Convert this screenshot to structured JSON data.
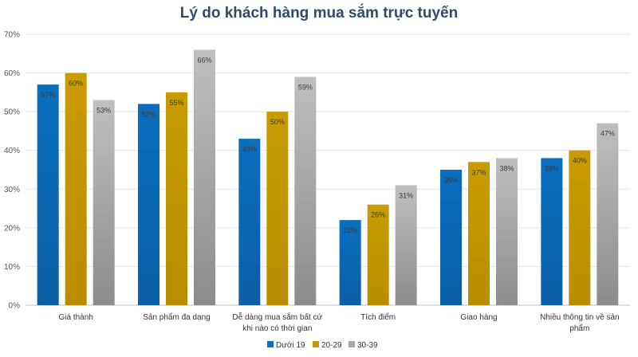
{
  "chart_data": {
    "type": "bar",
    "title": "Lý do khách hàng mua sắm trực tuyến",
    "categories": [
      [
        "Giá thành"
      ],
      [
        "Sản phẩm đa dạng"
      ],
      [
        "Dễ dàng mua sắm bất cứ",
        "khi nào có thời gian"
      ],
      [
        "Tích điểm"
      ],
      [
        "Giao hàng"
      ],
      [
        "Nhiều thông tin về sản",
        "phẩm"
      ]
    ],
    "series": [
      {
        "name": "Dưới 19",
        "values": [
          57,
          52,
          43,
          22,
          35,
          38
        ],
        "color": "#0a6ebd"
      },
      {
        "name": "20-29",
        "values": [
          60,
          55,
          50,
          26,
          37,
          40
        ],
        "color": "#c49a00"
      },
      {
        "name": "30-39",
        "values": [
          53,
          66,
          59,
          31,
          38,
          47
        ],
        "color": "#a6a6a6"
      }
    ],
    "ylim": [
      0,
      70
    ],
    "yticks": [
      0,
      10,
      20,
      30,
      40,
      50,
      60,
      70
    ],
    "value_suffix": "%",
    "grid": true,
    "legend": "bottom"
  }
}
